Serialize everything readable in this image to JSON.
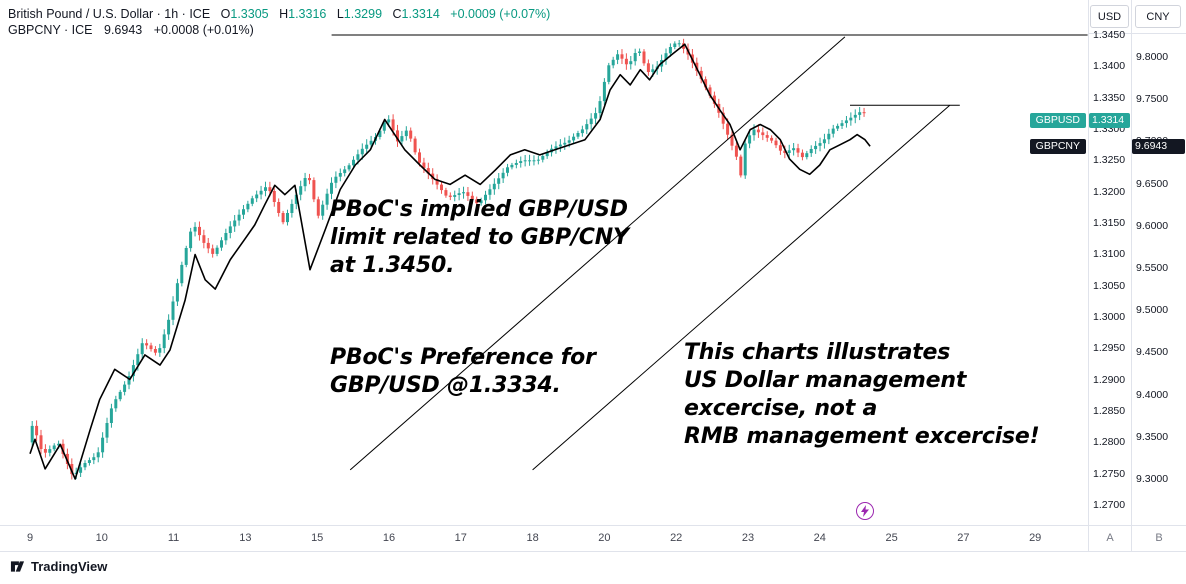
{
  "header": {
    "row1": {
      "title": "British Pound / U.S. Dollar · 1h · ICE",
      "o_label": "O",
      "o_value": "1.3305",
      "h_label": "H",
      "h_value": "1.3316",
      "l_label": "L",
      "l_value": "1.3299",
      "c_label": "C",
      "c_value": "1.3314",
      "change": "+0.0009 (+0.07%)"
    },
    "row2": {
      "title": "GBPCNY · ICE",
      "price": "9.6943",
      "change": "+0.0008 (+0.01%)"
    }
  },
  "scale_tabs": {
    "usd": "USD",
    "cny": "CNY"
  },
  "price_scales": {
    "usd_ticks": [
      "1.3450",
      "1.3400",
      "1.3350",
      "1.3300",
      "1.3250",
      "1.3200",
      "1.3150",
      "1.3100",
      "1.3050",
      "1.3000",
      "1.2950",
      "1.2900",
      "1.2850",
      "1.2800",
      "1.2750",
      "1.2700"
    ],
    "cny_ticks": [
      "9.8000",
      "9.7500",
      "9.7000",
      "9.6500",
      "9.6000",
      "9.5500",
      "9.5000",
      "9.4500",
      "9.4000",
      "9.3500",
      "9.3000"
    ],
    "usd_badge": {
      "label": "GBPUSD",
      "value": "1.3314",
      "color": "#26a69a"
    },
    "cny_badge": {
      "label": "GBPCNY",
      "value": "9.6943",
      "color": "#131722"
    },
    "scale_button_a": "A",
    "scale_button_b": "B"
  },
  "time_axis": {
    "labels": [
      "9",
      "10",
      "11",
      "13",
      "15",
      "16",
      "17",
      "18",
      "20",
      "22",
      "23",
      "24",
      "25",
      "27",
      "29"
    ]
  },
  "annotations": [
    {
      "text": "PBoC's implied GBP/USD\nlimit related to GBP/CNY\nat 1.3450."
    },
    {
      "text": "PBoC's Preference for\nGBP/USD @1.3334."
    },
    {
      "text": "This charts illustrates\nUS Dollar management\nexcercise, not a\nRMB management excercise!"
    }
  ],
  "footer": {
    "brand": "TradingView"
  },
  "colors": {
    "up": "#26a69a",
    "down": "#ef5350",
    "legend_green": "#089981",
    "text_dark": "#131722",
    "separator": "#e0e3eb",
    "drawing": "#000000",
    "event": "#9c27b0"
  },
  "chart_data": {
    "type": "candlestick",
    "title": "GBPUSD 1h candlesticks with GBPCNY line overlay",
    "x_axis": {
      "labels": [
        "9",
        "10",
        "11",
        "13",
        "15",
        "16",
        "17",
        "18",
        "20",
        "22",
        "23",
        "24",
        "25",
        "27",
        "29"
      ],
      "note": "September dates, weekend gaps hidden; t = label index units"
    },
    "y_axis_usd": {
      "min": 1.27,
      "max": 1.345,
      "tick_step": 0.005
    },
    "y_axis_cny": {
      "min": 9.3,
      "max": 9.8,
      "tick_step": 0.05
    },
    "series": [
      {
        "name": "GBPUSD",
        "type": "candlestick",
        "scale": "usd",
        "up_color": "#26a69a",
        "down_color": "#ef5350",
        "points_note": "estimated close path [t, price]; candles synthesized along path",
        "points": [
          [
            0,
            1.28
          ],
          [
            0.07,
            1.283
          ],
          [
            0.21,
            1.278
          ],
          [
            0.42,
            1.28
          ],
          [
            0.63,
            1.2745
          ],
          [
            0.77,
            1.2765
          ],
          [
            0.97,
            1.278
          ],
          [
            1.18,
            1.286
          ],
          [
            1.39,
            1.29
          ],
          [
            1.6,
            1.296
          ],
          [
            1.81,
            1.294
          ],
          [
            1.95,
            1.299
          ],
          [
            2.16,
            1.309
          ],
          [
            2.3,
            1.315
          ],
          [
            2.44,
            1.312
          ],
          [
            2.58,
            1.31
          ],
          [
            2.79,
            1.314
          ],
          [
            2.92,
            1.316
          ],
          [
            3.13,
            1.319
          ],
          [
            3.34,
            1.321
          ],
          [
            3.55,
            1.315
          ],
          [
            3.76,
            1.32
          ],
          [
            3.9,
            1.323
          ],
          [
            4.04,
            1.316
          ],
          [
            4.25,
            1.322
          ],
          [
            4.46,
            1.324
          ],
          [
            4.67,
            1.327
          ],
          [
            4.87,
            1.329
          ],
          [
            5.01,
            1.332
          ],
          [
            5.15,
            1.328
          ],
          [
            5.29,
            1.33
          ],
          [
            5.43,
            1.325
          ],
          [
            5.64,
            1.322
          ],
          [
            5.85,
            1.319
          ],
          [
            6.06,
            1.32
          ],
          [
            6.27,
            1.318
          ],
          [
            6.48,
            1.321
          ],
          [
            6.69,
            1.324
          ],
          [
            6.89,
            1.325
          ],
          [
            7.1,
            1.325
          ],
          [
            7.31,
            1.327
          ],
          [
            7.52,
            1.328
          ],
          [
            7.73,
            1.33
          ],
          [
            7.94,
            1.333
          ],
          [
            8.08,
            1.34
          ],
          [
            8.22,
            1.342
          ],
          [
            8.36,
            1.34
          ],
          [
            8.5,
            1.343
          ],
          [
            8.63,
            1.339
          ],
          [
            8.77,
            1.34
          ],
          [
            8.94,
            1.343
          ],
          [
            9.05,
            1.344
          ],
          [
            9.19,
            1.342
          ],
          [
            9.33,
            1.339
          ],
          [
            9.47,
            1.336
          ],
          [
            9.61,
            1.333
          ],
          [
            9.75,
            1.329
          ],
          [
            9.89,
            1.325
          ],
          [
            9.93,
            1.3225
          ],
          [
            9.96,
            1.327
          ],
          [
            10.1,
            1.33
          ],
          [
            10.24,
            1.329
          ],
          [
            10.38,
            1.328
          ],
          [
            10.52,
            1.326
          ],
          [
            10.66,
            1.327
          ],
          [
            10.79,
            1.3255
          ],
          [
            10.93,
            1.327
          ],
          [
            11.07,
            1.328
          ],
          [
            11.21,
            1.33
          ],
          [
            11.35,
            1.331
          ],
          [
            11.49,
            1.332
          ],
          [
            11.63,
            1.333
          ],
          [
            11.7,
            1.3314
          ]
        ]
      },
      {
        "name": "GBPCNY",
        "type": "line",
        "scale": "cny",
        "color": "#000000",
        "points": [
          [
            0,
            9.33
          ],
          [
            0.07,
            9.347
          ],
          [
            0.21,
            9.312
          ],
          [
            0.42,
            9.341
          ],
          [
            0.63,
            9.3
          ],
          [
            0.84,
            9.359
          ],
          [
            0.97,
            9.394
          ],
          [
            1.18,
            9.43
          ],
          [
            1.39,
            9.418
          ],
          [
            1.6,
            9.447
          ],
          [
            1.81,
            9.435
          ],
          [
            1.95,
            9.453
          ],
          [
            2.16,
            9.512
          ],
          [
            2.3,
            9.566
          ],
          [
            2.44,
            9.536
          ],
          [
            2.58,
            9.525
          ],
          [
            2.79,
            9.56
          ],
          [
            2.99,
            9.584
          ],
          [
            3.13,
            9.601
          ],
          [
            3.27,
            9.625
          ],
          [
            3.41,
            9.648
          ],
          [
            3.55,
            9.637
          ],
          [
            3.69,
            9.648
          ],
          [
            3.9,
            9.548
          ],
          [
            4.11,
            9.595
          ],
          [
            4.32,
            9.643
          ],
          [
            4.53,
            9.672
          ],
          [
            4.74,
            9.69
          ],
          [
            4.94,
            9.726
          ],
          [
            5.08,
            9.708
          ],
          [
            5.22,
            9.69
          ],
          [
            5.43,
            9.672
          ],
          [
            5.64,
            9.655
          ],
          [
            5.85,
            9.649
          ],
          [
            6.06,
            9.66
          ],
          [
            6.27,
            9.649
          ],
          [
            6.48,
            9.666
          ],
          [
            6.69,
            9.684
          ],
          [
            6.89,
            9.69
          ],
          [
            7.1,
            9.684
          ],
          [
            7.31,
            9.69
          ],
          [
            7.52,
            9.696
          ],
          [
            7.73,
            9.702
          ],
          [
            7.94,
            9.726
          ],
          [
            8.08,
            9.761
          ],
          [
            8.22,
            9.779
          ],
          [
            8.36,
            9.767
          ],
          [
            8.5,
            9.785
          ],
          [
            8.63,
            9.773
          ],
          [
            8.77,
            9.791
          ],
          [
            8.94,
            9.803
          ],
          [
            9.12,
            9.815
          ],
          [
            9.33,
            9.779
          ],
          [
            9.47,
            9.755
          ],
          [
            9.61,
            9.737
          ],
          [
            9.75,
            9.72
          ],
          [
            9.89,
            9.69
          ],
          [
            10.03,
            9.714
          ],
          [
            10.17,
            9.72
          ],
          [
            10.31,
            9.714
          ],
          [
            10.45,
            9.702
          ],
          [
            10.58,
            9.679
          ],
          [
            10.72,
            9.667
          ],
          [
            10.86,
            9.661
          ],
          [
            11,
            9.672
          ],
          [
            11.14,
            9.69
          ],
          [
            11.28,
            9.696
          ],
          [
            11.42,
            9.702
          ],
          [
            11.52,
            9.708
          ],
          [
            11.63,
            9.702
          ],
          [
            11.7,
            9.6943
          ]
        ]
      }
    ],
    "drawings": {
      "upper_horizontal_line": {
        "scale": "usd",
        "price": 1.345,
        "t1": 4.2,
        "t2": 14.73
      },
      "resistance_segment": {
        "scale": "usd",
        "price": 1.3338,
        "t1": 11.42,
        "t2": 12.95
      },
      "channel_line_upper": {
        "scale": "usd",
        "p1": [
          4.46,
          1.2756
        ],
        "p2": [
          11.35,
          1.3447
        ]
      },
      "channel_line_lower": {
        "scale": "usd",
        "p1": [
          7.0,
          1.2756
        ],
        "p2": [
          12.81,
          1.3338
        ]
      },
      "event_marker": {
        "t": 11.63,
        "symbol": "lightning",
        "color": "#9c27b0"
      }
    }
  }
}
